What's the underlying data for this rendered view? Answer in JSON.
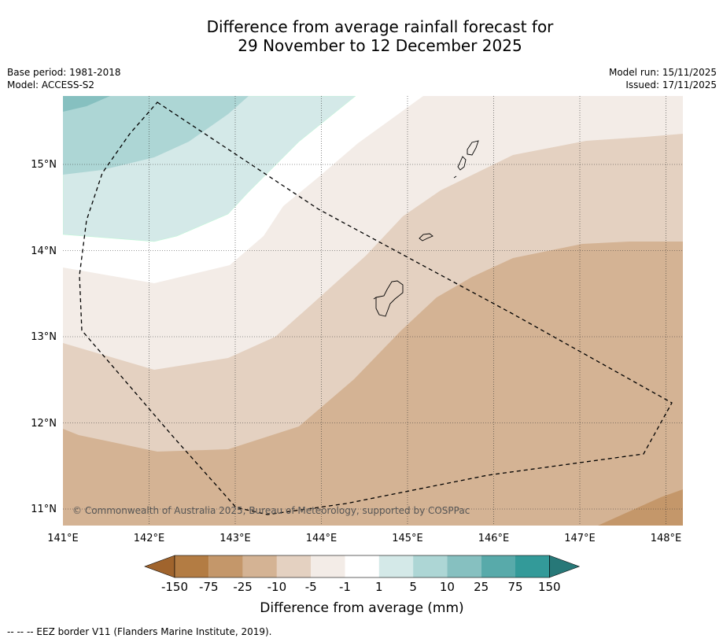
{
  "title": {
    "line1": "Difference from average rainfall forecast for",
    "line2": "29 November to 12 December 2025"
  },
  "meta_left": {
    "base_period": "Base period: 1981-2018",
    "model": "Model: ACCESS-S2"
  },
  "meta_right": {
    "model_run": "Model run: 15/11/2025",
    "issued": "Issued: 17/11/2025"
  },
  "map": {
    "lat_labels": [
      "15°N",
      "14°N",
      "13°N",
      "12°N",
      "11°N"
    ],
    "lon_labels": [
      "141°E",
      "142°E",
      "143°E",
      "144°E",
      "145°E",
      "146°E",
      "147°E",
      "148°E"
    ],
    "copyright": "© Commonwealth of Australia 2025, Bureau of Meteorology, supported by COSPPac"
  },
  "colorbar": {
    "ticks": [
      "-150",
      "-75",
      "-25",
      "-10",
      "-5",
      "-1",
      "1",
      "5",
      "10",
      "25",
      "75",
      "150"
    ],
    "colors": [
      "#a0642d",
      "#b37c43",
      "#c4976a",
      "#d4b394",
      "#e4d1c1",
      "#f3ece7",
      "#ffffff",
      "#d4e9e8",
      "#add6d5",
      "#86c0c0",
      "#58aaaa",
      "#339a99",
      "#277878"
    ],
    "label": "Difference from average (mm)"
  },
  "footnote": "--  --  -- EEZ border V11 (Flanders Marine Institute, 2019)."
}
